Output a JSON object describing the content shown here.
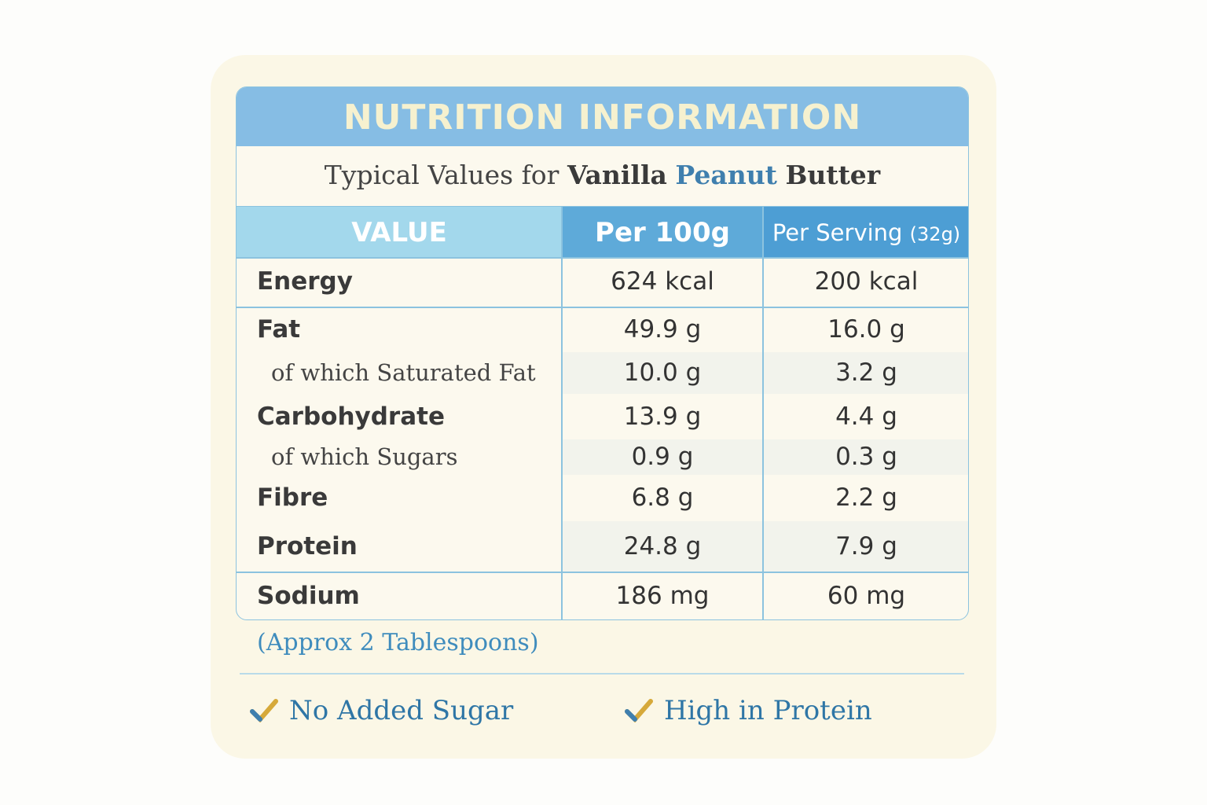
{
  "title": "NUTRITION INFORMATION",
  "subtitle": {
    "lead": "Typical Values for",
    "name": [
      "Vanilla",
      "Peanut",
      "Butter"
    ]
  },
  "table": {
    "header": [
      "VALUE",
      "Per 100g",
      {
        "main": "Per Serving",
        "note": "(32g)"
      }
    ],
    "rows": [
      [
        "Energy",
        "624 kcal",
        "200 kcal"
      ],
      [
        "Fat",
        "49.9 g",
        "16.0 g"
      ],
      [
        "of which Saturated Fat",
        "10.0 g",
        "3.2 g"
      ],
      [
        "Carbohydrate",
        "13.9 g",
        "4.4 g"
      ],
      [
        "of which Sugars",
        "0.9 g",
        "0.3 g"
      ],
      [
        "Fibre",
        "6.8 g",
        "2.2 g"
      ],
      [
        "Protein",
        "24.8 g",
        "7.9 g"
      ],
      [
        "Sodium",
        "186 mg",
        "60 mg"
      ]
    ]
  },
  "footnote": "(Approx 2 Tablespoons)",
  "claims": [
    "No Added Sugar",
    "High in Protein"
  ]
}
